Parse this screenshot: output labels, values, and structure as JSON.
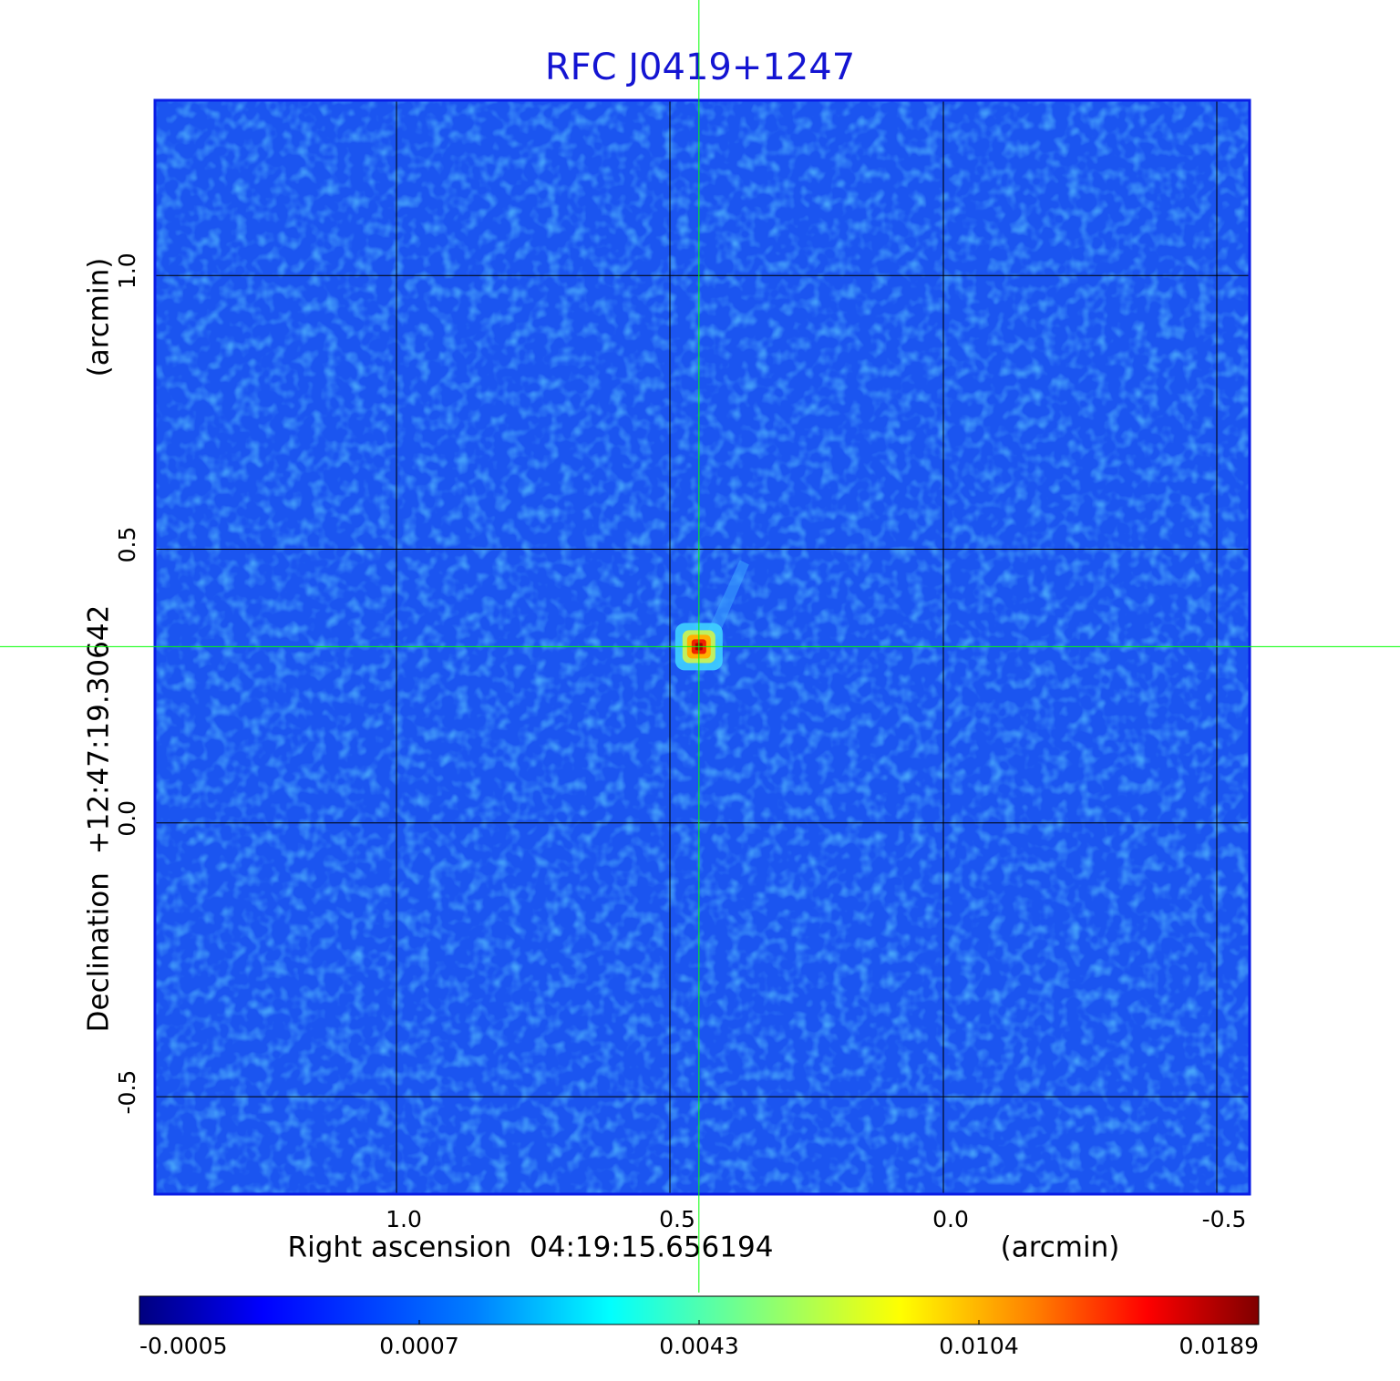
{
  "chart_data": {
    "type": "image",
    "title": "RFC J0419+1247",
    "x_label": "Right ascension  04:19:15.656194",
    "x_unit": "(arcmin)",
    "y_label": "Declination  +12:47:19.30642",
    "y_unit": "(arcmin)",
    "xlim": [
      1.4417,
      -0.56
    ],
    "ylim": [
      -0.678,
      1.32
    ],
    "xticks": [
      {
        "value": 1,
        "label": "1.0"
      },
      0.5,
      {
        "value": 0,
        "label": "0.0"
      },
      -0.5
    ],
    "yticks": [
      {
        "value": 1,
        "label": "1.0"
      },
      0.5,
      {
        "value": 0,
        "label": "0.0"
      },
      -0.5
    ],
    "grid": true,
    "marker": {
      "x": 0.447,
      "y": 0.322,
      "color": "#00ff00"
    },
    "colorbar": {
      "colormap": "jet",
      "ticks": [
        -0.0005,
        0.0007,
        0.0043,
        0.0104,
        0.0189
      ]
    }
  }
}
